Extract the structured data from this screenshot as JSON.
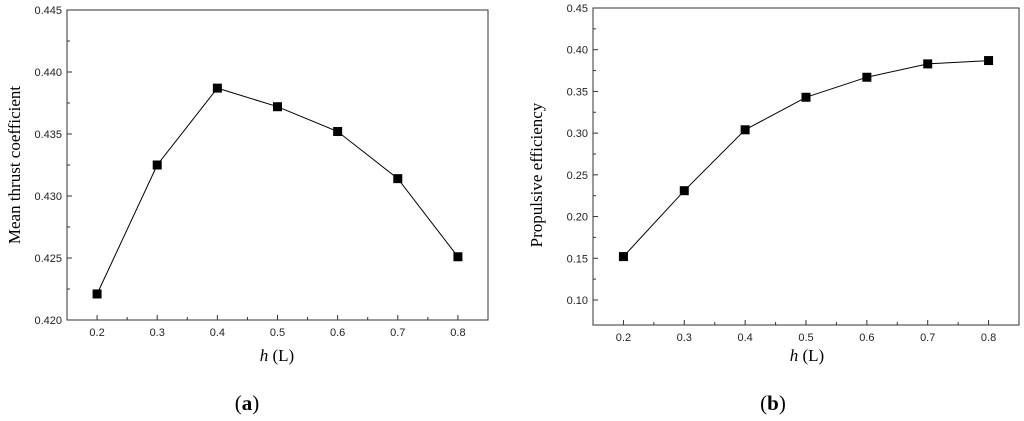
{
  "chart_data": [
    {
      "type": "line",
      "panel": "a",
      "x": [
        0.2,
        0.3,
        0.4,
        0.5,
        0.6,
        0.7,
        0.8
      ],
      "series": [
        {
          "values": [
            0.4221,
            0.4325,
            0.4387,
            0.4372,
            0.4352,
            0.4314,
            0.4251
          ]
        }
      ],
      "xlabel_var": "h",
      "xlabel_unit": "(L)",
      "ylabel": "Mean thrust coefficient",
      "xlim": [
        0.15,
        0.85
      ],
      "ylim": [
        0.42,
        0.445
      ],
      "xticks": [
        "0.2",
        "0.3",
        "0.4",
        "0.5",
        "0.6",
        "0.7",
        "0.8"
      ],
      "yticks": [
        "0.420",
        "0.425",
        "0.430",
        "0.435",
        "0.440",
        "0.445"
      ],
      "grid": false,
      "marker": "square"
    },
    {
      "type": "line",
      "panel": "b",
      "x": [
        0.2,
        0.3,
        0.4,
        0.5,
        0.6,
        0.7,
        0.8
      ],
      "series": [
        {
          "values": [
            0.152,
            0.231,
            0.304,
            0.343,
            0.367,
            0.383,
            0.387
          ]
        }
      ],
      "xlabel_var": "h",
      "xlabel_unit": "(L)",
      "ylabel": "Propulsive efficiency",
      "xlim": [
        0.15,
        0.85
      ],
      "ylim": [
        0.07,
        0.45
      ],
      "xticks": [
        "0.2",
        "0.3",
        "0.4",
        "0.5",
        "0.6",
        "0.7",
        "0.8"
      ],
      "yticks": [
        "0.10",
        "0.15",
        "0.20",
        "0.25",
        "0.30",
        "0.35",
        "0.40",
        "0.45"
      ],
      "grid": false,
      "marker": "square"
    }
  ],
  "captions": {
    "a": {
      "open": "(",
      "letter": "a",
      "close": ")"
    },
    "b": {
      "open": "(",
      "letter": "b",
      "close": ")"
    }
  }
}
